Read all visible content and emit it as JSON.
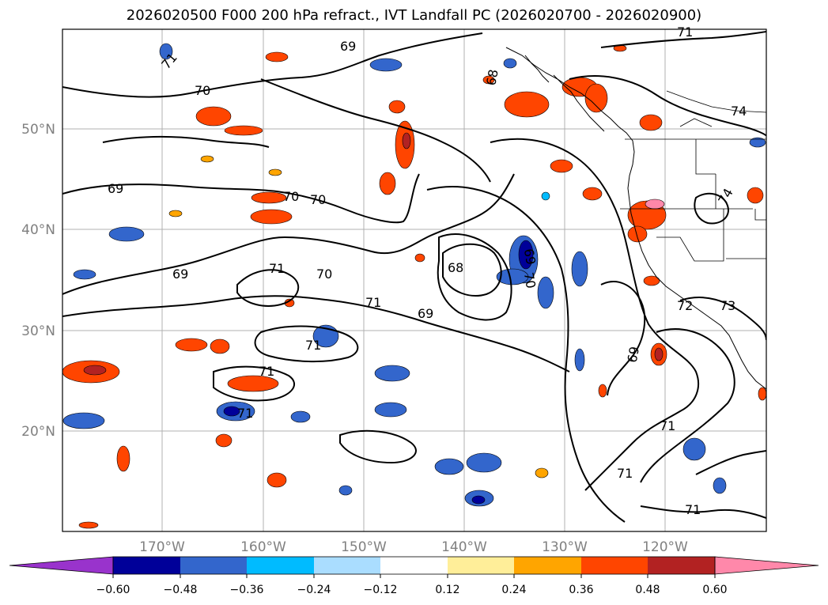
{
  "title": "2026020500 F000 200 hPa refract., IVT Landfall PC (2026020700 - 2026020900)",
  "lat_labels": [
    "50°N",
    "40°N",
    "30°N",
    "20°N"
  ],
  "lon_labels": [
    "170°W",
    "160°W",
    "150°W",
    "140°W",
    "130°W",
    "120°W"
  ],
  "colorbar": {
    "ticks": [
      "−0.60",
      "−0.48",
      "−0.36",
      "−0.24",
      "−0.12",
      "0.12",
      "0.24",
      "0.36",
      "0.48",
      "0.60"
    ],
    "colors": {
      "under": "#9933cc",
      "bins": [
        "#000099",
        "#3366cc",
        "#00bbff",
        "#aaddff",
        "#ffffff",
        "#ffee99",
        "#ffa500",
        "#ff4500",
        "#b22222"
      ],
      "over": "#ff88aa"
    }
  },
  "contour_labels": [
    "71",
    "70",
    "69",
    "69",
    "70",
    "70",
    "69",
    "69",
    "71",
    "70",
    "71",
    "71",
    "71",
    "71",
    "68",
    "68",
    "69",
    "70",
    "69",
    "72",
    "73",
    "74",
    "74",
    "71",
    "71",
    "71",
    "71"
  ]
}
